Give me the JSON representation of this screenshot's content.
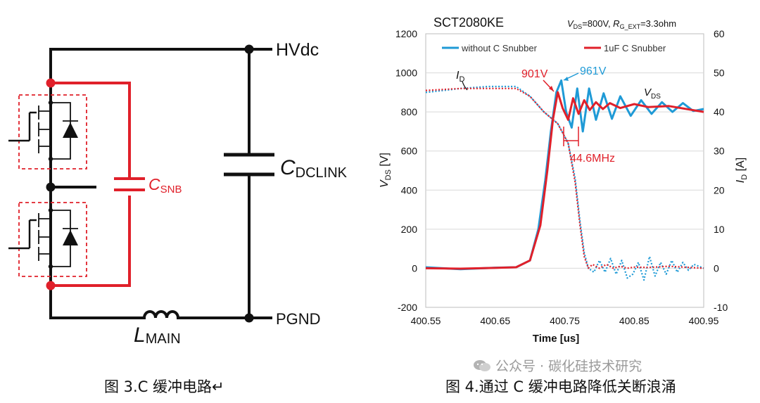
{
  "circuit": {
    "node_hvdc": "HVdc",
    "node_pgnd": "PGND",
    "cap_dclink": {
      "main": "C",
      "sub": "DCLINK"
    },
    "cap_snb": {
      "main": "C",
      "sub": "SNB"
    },
    "inductor": {
      "main": "L",
      "sub": "MAIN"
    },
    "colors": {
      "wire": "#111111",
      "snubber": "#e0202a",
      "device_box": "#e0202a"
    }
  },
  "captions": {
    "left": "图 3.C 缓冲电路↵",
    "right": "图 4.通过 C 缓冲电路降低关断浪涌"
  },
  "watermark": "公众号 · 碳化硅技术研究",
  "chart_data": {
    "type": "line",
    "title": "SCT2080KE",
    "conditions": {
      "vds": "V_DS=800V",
      "rg": "R_G_EXT=3.3ohm"
    },
    "xlabel": "Time [us]",
    "ylabel_left": "V_DS [V]",
    "ylabel_right": "I_D [A]",
    "xlim": [
      400.55,
      400.95
    ],
    "ylim_left": [
      -200,
      1200
    ],
    "ylim_right": [
      -10,
      60
    ],
    "x_ticks": [
      "400.55",
      "400.65",
      "400.75",
      "400.85",
      "400.95"
    ],
    "y_ticks_left": [
      "-200",
      "0",
      "200",
      "400",
      "600",
      "800",
      "1000",
      "1200"
    ],
    "y_ticks_right": [
      "-10",
      "0",
      "10",
      "20",
      "30",
      "40",
      "50",
      "60"
    ],
    "grid": "horizontal",
    "legend": {
      "placement": "top",
      "entries": [
        "without C Snubber",
        "1uF C Snubber"
      ]
    },
    "colors": {
      "without": "#1f9ad6",
      "with": "#e0202a"
    },
    "annotations": {
      "id_label": "I_D",
      "vds_label": "V_DS",
      "peak_without": "961V",
      "peak_with": "901V",
      "ring_freq": "44.6MHz"
    },
    "series": [
      {
        "name": "without C Snubber",
        "quantity": "V_DS",
        "axis": "left",
        "style": "solid",
        "points": [
          [
            400.55,
            5
          ],
          [
            400.6,
            -5
          ],
          [
            400.65,
            3
          ],
          [
            400.68,
            5
          ],
          [
            400.7,
            40
          ],
          [
            400.712,
            200
          ],
          [
            400.722,
            450
          ],
          [
            400.73,
            700
          ],
          [
            400.738,
            900
          ],
          [
            400.745,
            961
          ],
          [
            400.752,
            800
          ],
          [
            400.76,
            720
          ],
          [
            400.768,
            920
          ],
          [
            400.776,
            700
          ],
          [
            400.785,
            920
          ],
          [
            400.795,
            760
          ],
          [
            400.806,
            895
          ],
          [
            400.818,
            765
          ],
          [
            400.83,
            880
          ],
          [
            400.845,
            780
          ],
          [
            400.86,
            860
          ],
          [
            400.875,
            790
          ],
          [
            400.89,
            850
          ],
          [
            400.905,
            800
          ],
          [
            400.92,
            845
          ],
          [
            400.935,
            805
          ],
          [
            400.95,
            815
          ]
        ]
      },
      {
        "name": "1uF C Snubber",
        "quantity": "V_DS",
        "axis": "left",
        "style": "solid",
        "points": [
          [
            400.55,
            0
          ],
          [
            400.6,
            -2
          ],
          [
            400.65,
            2
          ],
          [
            400.68,
            5
          ],
          [
            400.7,
            40
          ],
          [
            400.715,
            220
          ],
          [
            400.725,
            500
          ],
          [
            400.733,
            760
          ],
          [
            400.74,
            901
          ],
          [
            400.747,
            820
          ],
          [
            400.755,
            760
          ],
          [
            400.762,
            870
          ],
          [
            400.77,
            790
          ],
          [
            400.778,
            860
          ],
          [
            400.786,
            810
          ],
          [
            400.795,
            850
          ],
          [
            400.805,
            815
          ],
          [
            400.815,
            845
          ],
          [
            400.83,
            820
          ],
          [
            400.85,
            840
          ],
          [
            400.87,
            825
          ],
          [
            400.9,
            830
          ],
          [
            400.95,
            800
          ]
        ]
      },
      {
        "name": "without C Snubber",
        "quantity": "I_D",
        "axis": "right",
        "style": "dotted",
        "points": [
          [
            400.55,
            45
          ],
          [
            400.6,
            46
          ],
          [
            400.64,
            46.5
          ],
          [
            400.68,
            46.5
          ],
          [
            400.7,
            44
          ],
          [
            400.72,
            40
          ],
          [
            400.74,
            37
          ],
          [
            400.755,
            32
          ],
          [
            400.765,
            23
          ],
          [
            400.772,
            12
          ],
          [
            400.778,
            4
          ],
          [
            400.784,
            0
          ],
          [
            400.792,
            -1
          ],
          [
            400.8,
            2
          ],
          [
            400.808,
            -1
          ],
          [
            400.816,
            2.5
          ],
          [
            400.824,
            -1.5
          ],
          [
            400.832,
            2
          ],
          [
            400.84,
            -2.5
          ],
          [
            400.848,
            -1.5
          ],
          [
            400.856,
            1.5
          ],
          [
            400.864,
            -3
          ],
          [
            400.872,
            3
          ],
          [
            400.88,
            -2
          ],
          [
            400.888,
            1.5
          ],
          [
            400.896,
            -1.5
          ],
          [
            400.904,
            2
          ],
          [
            400.912,
            -1
          ],
          [
            400.92,
            1.5
          ],
          [
            400.928,
            -0.5
          ],
          [
            400.936,
            1
          ],
          [
            400.95,
            0
          ]
        ]
      },
      {
        "name": "1uF C Snubber",
        "quantity": "I_D",
        "axis": "right",
        "style": "dotted",
        "points": [
          [
            400.55,
            45.5
          ],
          [
            400.6,
            46
          ],
          [
            400.64,
            46
          ],
          [
            400.68,
            46
          ],
          [
            400.7,
            44
          ],
          [
            400.72,
            40
          ],
          [
            400.74,
            37
          ],
          [
            400.755,
            32
          ],
          [
            400.765,
            22
          ],
          [
            400.772,
            11
          ],
          [
            400.778,
            3
          ],
          [
            400.784,
            0
          ],
          [
            400.79,
            1
          ],
          [
            400.8,
            0
          ],
          [
            400.81,
            1
          ],
          [
            400.82,
            0
          ],
          [
            400.83,
            0.5
          ],
          [
            400.84,
            0
          ],
          [
            400.85,
            0.3
          ],
          [
            400.87,
            0.2
          ],
          [
            400.9,
            0.5
          ],
          [
            400.95,
            0
          ]
        ]
      }
    ]
  }
}
